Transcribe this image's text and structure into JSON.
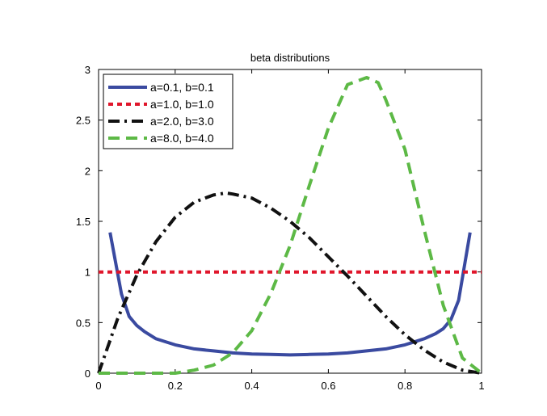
{
  "chart_data": {
    "type": "line",
    "title": "beta distributions",
    "xlabel": "",
    "ylabel": "",
    "xlim": [
      0,
      1
    ],
    "ylim": [
      0,
      3
    ],
    "x_ticks": [
      "0",
      "0.2",
      "0.4",
      "0.6",
      "0.8",
      "1"
    ],
    "y_ticks": [
      "0",
      "0.5",
      "1",
      "1.5",
      "2",
      "2.5",
      "3"
    ],
    "legend_position": "top-left",
    "grid": false,
    "series": [
      {
        "name": "a=0.1, b=0.1",
        "color": "#3A4AA0",
        "style": "solid",
        "x": [
          0.03,
          0.06,
          0.08,
          0.1,
          0.12,
          0.15,
          0.2,
          0.25,
          0.3,
          0.35,
          0.4,
          0.45,
          0.5,
          0.55,
          0.6,
          0.65,
          0.7,
          0.75,
          0.8,
          0.85,
          0.88,
          0.9,
          0.92,
          0.94,
          0.97
        ],
        "y": [
          1.39,
          0.78,
          0.56,
          0.47,
          0.41,
          0.34,
          0.28,
          0.24,
          0.22,
          0.2,
          0.19,
          0.185,
          0.18,
          0.185,
          0.19,
          0.2,
          0.22,
          0.24,
          0.28,
          0.34,
          0.39,
          0.44,
          0.53,
          0.72,
          1.39
        ]
      },
      {
        "name": "a=1.0, b=1.0",
        "color": "#E0162B",
        "style": "dotted",
        "x": [
          0,
          1
        ],
        "y": [
          1,
          1
        ]
      },
      {
        "name": "a=2.0, b=3.0",
        "color": "#111111",
        "style": "dashdot",
        "x": [
          0,
          0.05,
          0.1,
          0.15,
          0.2,
          0.25,
          0.3,
          0.333,
          0.35,
          0.4,
          0.45,
          0.5,
          0.55,
          0.6,
          0.65,
          0.7,
          0.75,
          0.8,
          0.85,
          0.9,
          0.95,
          1.0
        ],
        "y": [
          0,
          0.54,
          0.97,
          1.3,
          1.54,
          1.69,
          1.76,
          1.78,
          1.77,
          1.73,
          1.63,
          1.5,
          1.34,
          1.15,
          0.96,
          0.76,
          0.56,
          0.38,
          0.23,
          0.11,
          0.03,
          0
        ]
      },
      {
        "name": "a=8.0, b=4.0",
        "color": "#5DB946",
        "style": "dashed",
        "x": [
          0,
          0.1,
          0.2,
          0.25,
          0.3,
          0.35,
          0.4,
          0.45,
          0.5,
          0.55,
          0.6,
          0.65,
          0.7,
          0.73,
          0.75,
          0.8,
          0.85,
          0.9,
          0.95,
          1.0
        ],
        "y": [
          0,
          0,
          0.0,
          0.03,
          0.08,
          0.2,
          0.42,
          0.79,
          1.26,
          1.85,
          2.42,
          2.85,
          2.92,
          2.87,
          2.7,
          2.21,
          1.42,
          0.67,
          0.15,
          0
        ]
      }
    ]
  }
}
